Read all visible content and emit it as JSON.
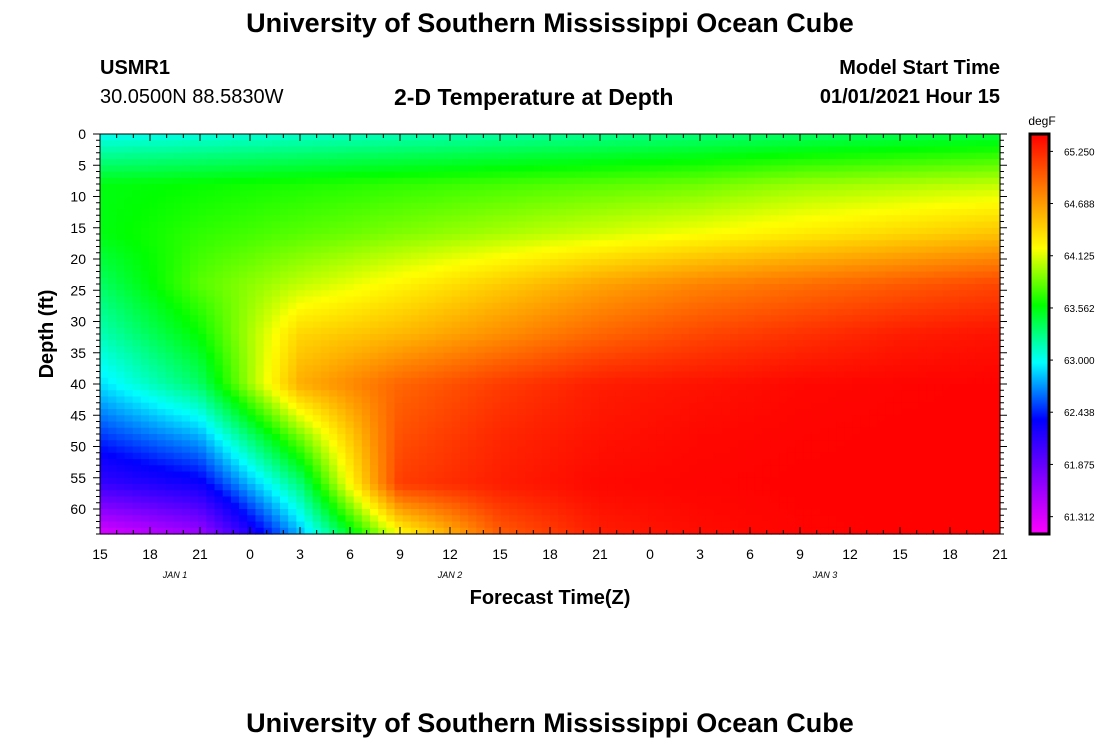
{
  "header": {
    "title": "University of Southern Mississippi Ocean Cube",
    "station_id": "USMR1",
    "coordinates": "30.0500N 88.5830W",
    "model_start_label": "Model Start Time",
    "model_start_value": "01/01/2021 Hour 15"
  },
  "footer": {
    "title": "University of Southern Mississippi Ocean Cube"
  },
  "colors": {
    "background": "#ffffff",
    "text": "#000000",
    "colormap_low": "#ff00ff",
    "colormap_high": "#ff0000"
  },
  "chart_data": {
    "type": "heatmap",
    "title": "2-D Temperature at Depth",
    "xlabel": "Forecast Time(Z)",
    "ylabel": "Depth (ft)",
    "x_ticks": [
      "15",
      "18",
      "21",
      "0",
      "3",
      "6",
      "9",
      "12",
      "15",
      "18",
      "21",
      "0",
      "3",
      "6",
      "9",
      "12",
      "15",
      "18",
      "21"
    ],
    "x_hours_from_start": [
      0,
      3,
      6,
      9,
      12,
      15,
      18,
      21,
      24,
      27,
      30,
      33,
      36,
      39,
      42,
      45,
      48,
      51,
      54
    ],
    "x_range_hours": [
      0,
      54
    ],
    "day_labels": [
      {
        "label": "JAN 1",
        "hour": 4.5
      },
      {
        "label": "JAN 2",
        "hour": 21
      },
      {
        "label": "JAN 3",
        "hour": 43.5
      }
    ],
    "y_ticks": [
      0,
      5,
      10,
      15,
      20,
      25,
      30,
      35,
      40,
      45,
      50,
      55,
      60
    ],
    "y_range_ft": [
      0,
      64
    ],
    "y_inverted": true,
    "colorbar": {
      "unit": "degF",
      "ticks": [
        65.25,
        64.688,
        64.125,
        63.562,
        63.0,
        62.438,
        61.875,
        61.312
      ],
      "tick_labels": [
        "65.250",
        "64.688",
        "64.125",
        "63.562",
        "63.000",
        "62.438",
        "61.875",
        "61.312"
      ],
      "range": [
        61.125,
        65.4375
      ],
      "colormap": [
        "#ff00ff",
        "#8000ff",
        "#0000ff",
        "#00ffff",
        "#00ff00",
        "#ffff00",
        "#ff8000",
        "#ff0000"
      ]
    },
    "grid": {
      "hours": [
        0,
        6,
        12,
        18,
        24,
        30,
        36,
        42,
        48,
        54
      ],
      "depths_ft": [
        0,
        8,
        16,
        24,
        32,
        40,
        48,
        56,
        64
      ],
      "values_degF": [
        [
          63.0,
          63.55,
          63.55,
          63.35,
          63.15,
          62.9,
          62.5,
          62.1,
          61.3
        ],
        [
          63.05,
          63.6,
          63.7,
          63.8,
          63.6,
          63.35,
          62.8,
          62.3,
          61.6
        ],
        [
          63.1,
          63.65,
          63.8,
          64.05,
          64.4,
          64.6,
          63.9,
          63.3,
          62.8
        ],
        [
          63.15,
          63.7,
          63.9,
          64.25,
          64.55,
          64.95,
          65.05,
          65.15,
          64.2
        ],
        [
          63.2,
          63.75,
          64.0,
          64.45,
          64.75,
          65.15,
          65.25,
          65.3,
          65.0
        ],
        [
          63.25,
          63.8,
          64.1,
          64.65,
          64.95,
          65.3,
          65.35,
          65.4,
          65.3
        ],
        [
          63.3,
          63.85,
          64.2,
          64.8,
          65.1,
          65.35,
          65.4,
          65.42,
          65.38
        ],
        [
          63.35,
          63.95,
          64.3,
          64.9,
          65.2,
          65.4,
          65.42,
          65.43,
          65.42
        ],
        [
          63.4,
          64.0,
          64.4,
          65.0,
          65.3,
          65.42,
          65.43,
          65.43,
          65.43
        ],
        [
          63.45,
          64.05,
          64.5,
          65.1,
          65.35,
          65.43,
          65.43,
          65.43,
          65.43
        ]
      ]
    }
  }
}
